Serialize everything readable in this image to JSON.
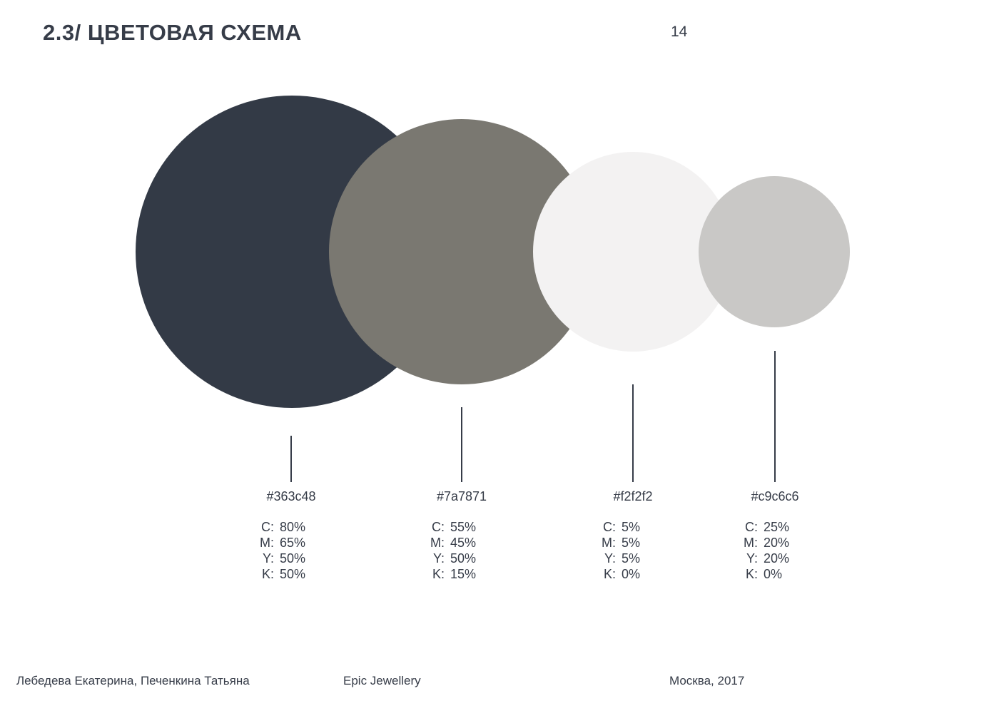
{
  "header": {
    "title": "2.3/ ЦВЕТОВАЯ СХЕМА",
    "page_number": "14"
  },
  "swatches": [
    {
      "hex": "#363c48",
      "color": "#333a46",
      "cmyk": [
        {
          "k": "C:",
          "v": "80%"
        },
        {
          "k": "M:",
          "v": "65%"
        },
        {
          "k": "Y:",
          "v": "50%"
        },
        {
          "k": "K:",
          "v": "50%"
        }
      ]
    },
    {
      "hex": "#7a7871",
      "color": "#7a7871",
      "cmyk": [
        {
          "k": "C:",
          "v": "55%"
        },
        {
          "k": "M:",
          "v": "45%"
        },
        {
          "k": "Y:",
          "v": "50%"
        },
        {
          "k": "K:",
          "v": "15%"
        }
      ]
    },
    {
      "hex": "#f2f2f2",
      "color": "#f3f2f2",
      "cmyk": [
        {
          "k": "C:",
          "v": "5%"
        },
        {
          "k": "M:",
          "v": "5%"
        },
        {
          "k": "Y:",
          "v": "5%"
        },
        {
          "k": "K:",
          "v": "0%"
        }
      ]
    },
    {
      "hex": "#c9c6c6",
      "color": "#c9c8c6",
      "cmyk": [
        {
          "k": "C:",
          "v": "25%"
        },
        {
          "k": "M:",
          "v": "20%"
        },
        {
          "k": "Y:",
          "v": "20%"
        },
        {
          "k": "K:",
          "v": "0%"
        }
      ]
    }
  ],
  "footer": {
    "authors": "Лебедева Екатерина, Печенкина Татьяна",
    "brand": "Epic Jewellery",
    "place": "Москва, 2017"
  }
}
